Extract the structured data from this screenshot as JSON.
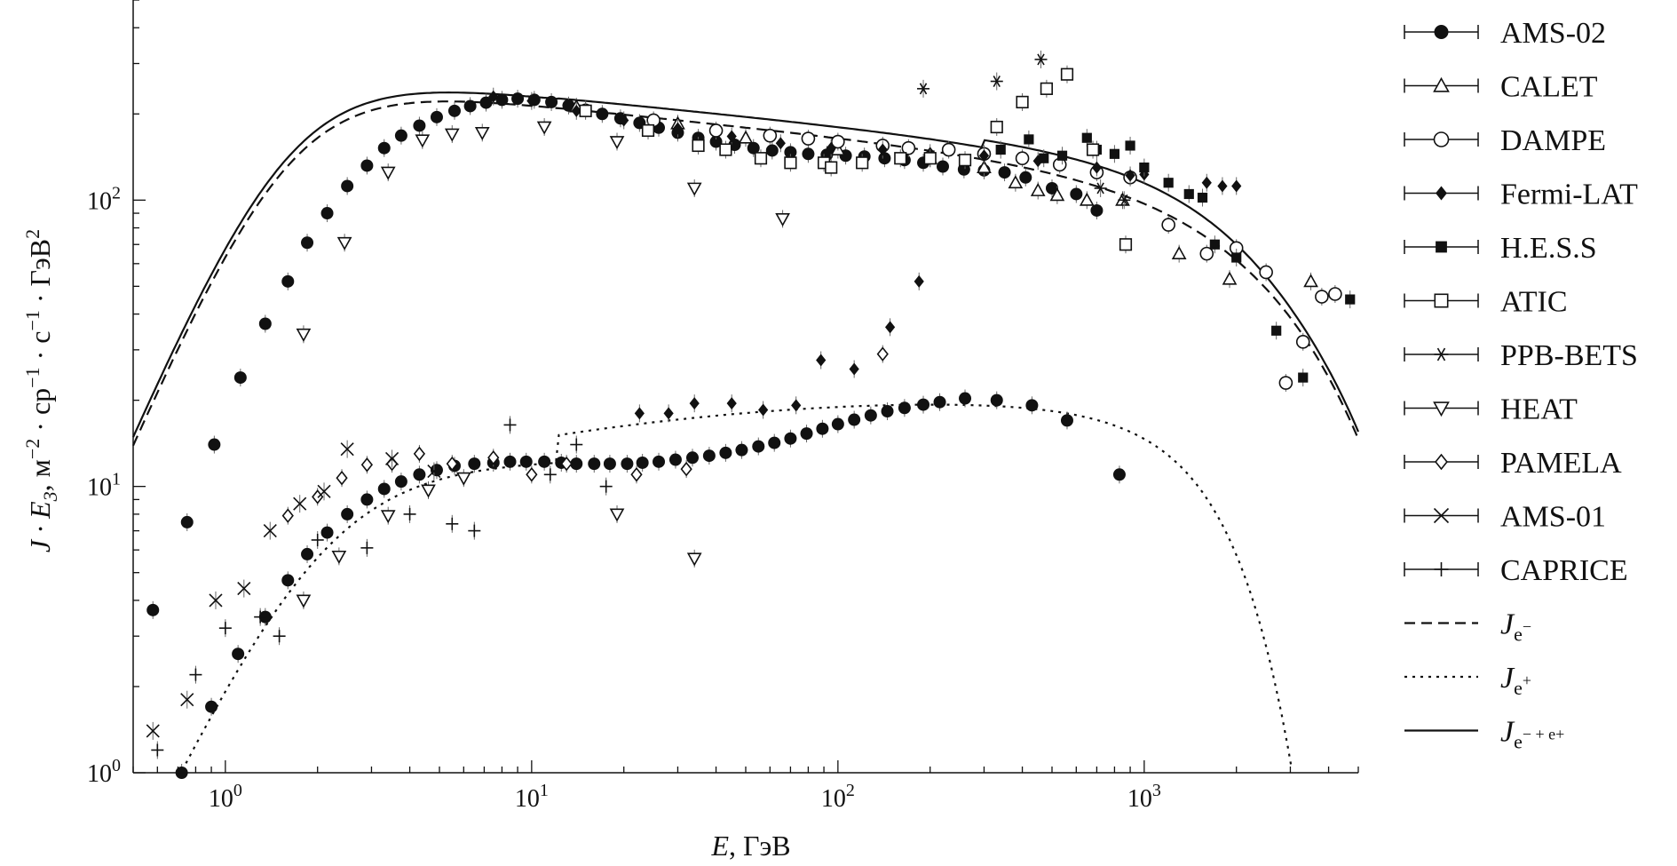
{
  "chart_data": {
    "type": "scatter",
    "title": "",
    "xlabel": {
      "main": "E",
      "unit": ", ГэВ"
    },
    "ylabel": {
      "prefix": "J · E",
      "sub": "3",
      "rest": ", м",
      "sup1": "−2",
      "mid1": " · ср",
      "sup2": "−1",
      "mid2": " · с",
      "sup3": "−1",
      "mid3": " · ГэВ",
      "sup4": "2"
    },
    "xscale": "log",
    "yscale": "log",
    "xlim": [
      0.5,
      5000
    ],
    "ylim": [
      1,
      500
    ],
    "x_ticks": [
      {
        "value": 1,
        "base": "10",
        "exp": "0"
      },
      {
        "value": 10,
        "base": "10",
        "exp": "1"
      },
      {
        "value": 100,
        "base": "10",
        "exp": "2"
      },
      {
        "value": 1000,
        "base": "10",
        "exp": "3"
      }
    ],
    "y_ticks": [
      {
        "value": 1,
        "base": "10",
        "exp": "0"
      },
      {
        "value": 10,
        "base": "10",
        "exp": "1"
      },
      {
        "value": 100,
        "base": "10",
        "exp": "2"
      }
    ],
    "legend_position": "right",
    "series": [
      {
        "name": "AMS-02",
        "marker": "filled-circle",
        "points": [
          [
            0.58,
            3.7
          ],
          [
            0.75,
            7.5
          ],
          [
            0.92,
            14
          ],
          [
            1.12,
            24
          ],
          [
            1.35,
            37
          ],
          [
            1.6,
            52
          ],
          [
            1.85,
            71
          ],
          [
            2.15,
            90
          ],
          [
            2.5,
            112
          ],
          [
            2.9,
            132
          ],
          [
            3.3,
            152
          ],
          [
            3.75,
            168
          ],
          [
            4.3,
            182
          ],
          [
            4.9,
            195
          ],
          [
            5.6,
            205
          ],
          [
            6.3,
            213
          ],
          [
            7.1,
            219
          ],
          [
            8.0,
            224
          ],
          [
            9.0,
            226
          ],
          [
            10.2,
            224
          ],
          [
            11.6,
            220
          ],
          [
            13.2,
            214
          ],
          [
            15.0,
            207
          ],
          [
            17.0,
            200
          ],
          [
            19.5,
            193
          ],
          [
            22.5,
            186
          ],
          [
            26,
            179
          ],
          [
            30,
            172
          ],
          [
            35,
            165
          ],
          [
            40,
            160
          ],
          [
            46,
            156
          ],
          [
            53,
            152
          ],
          [
            61,
            149
          ],
          [
            70,
            147
          ],
          [
            80,
            145
          ],
          [
            92,
            144
          ],
          [
            106,
            143
          ],
          [
            122,
            142
          ],
          [
            142,
            140
          ],
          [
            165,
            138
          ],
          [
            190,
            135
          ],
          [
            220,
            131
          ],
          [
            258,
            128
          ],
          [
            300,
            127
          ],
          [
            350,
            125
          ],
          [
            410,
            120
          ],
          [
            500,
            110
          ],
          [
            600,
            105
          ],
          [
            700,
            92
          ],
          [
            0.72,
            1.0
          ],
          [
            0.9,
            1.7
          ],
          [
            1.1,
            2.6
          ],
          [
            1.35,
            3.5
          ],
          [
            1.6,
            4.7
          ],
          [
            1.85,
            5.8
          ],
          [
            2.15,
            6.9
          ],
          [
            2.5,
            8.0
          ],
          [
            2.9,
            9.0
          ],
          [
            3.3,
            9.8
          ],
          [
            3.75,
            10.4
          ],
          [
            4.3,
            11.0
          ],
          [
            4.9,
            11.4
          ],
          [
            5.6,
            11.8
          ],
          [
            6.5,
            12.0
          ],
          [
            7.5,
            12.1
          ],
          [
            8.5,
            12.2
          ],
          [
            9.6,
            12.2
          ],
          [
            11,
            12.2
          ],
          [
            12.5,
            12.1
          ],
          [
            14,
            12.0
          ],
          [
            16,
            12.0
          ],
          [
            18,
            12.0
          ],
          [
            20.5,
            12.0
          ],
          [
            23,
            12.1
          ],
          [
            26,
            12.2
          ],
          [
            29.5,
            12.4
          ],
          [
            33.5,
            12.6
          ],
          [
            38,
            12.8
          ],
          [
            43,
            13.1
          ],
          [
            48.5,
            13.4
          ],
          [
            55,
            13.8
          ],
          [
            62,
            14.2
          ],
          [
            70,
            14.7
          ],
          [
            79,
            15.3
          ],
          [
            89,
            15.9
          ],
          [
            100,
            16.5
          ],
          [
            113,
            17.1
          ],
          [
            128,
            17.7
          ],
          [
            145,
            18.3
          ],
          [
            165,
            18.8
          ],
          [
            190,
            19.3
          ],
          [
            215,
            19.7
          ],
          [
            260,
            20.3
          ],
          [
            330,
            20.0
          ],
          [
            430,
            19.2
          ],
          [
            560,
            17.0
          ],
          [
            830,
            11.0
          ]
        ]
      },
      {
        "name": "CALET",
        "marker": "open-triangle",
        "points": [
          [
            14,
            212
          ],
          [
            30,
            185
          ],
          [
            50,
            165
          ],
          [
            100,
            150
          ],
          [
            200,
            140
          ],
          [
            300,
            130
          ],
          [
            380,
            115
          ],
          [
            450,
            108
          ],
          [
            520,
            104
          ],
          [
            650,
            100
          ],
          [
            850,
            100
          ],
          [
            1300,
            65
          ],
          [
            1900,
            53
          ],
          [
            3500,
            52
          ]
        ]
      },
      {
        "name": "DAMPE",
        "marker": "open-circle",
        "points": [
          [
            25,
            190
          ],
          [
            40,
            175
          ],
          [
            60,
            168
          ],
          [
            80,
            164
          ],
          [
            100,
            160
          ],
          [
            140,
            155
          ],
          [
            170,
            152
          ],
          [
            230,
            150
          ],
          [
            300,
            145
          ],
          [
            400,
            140
          ],
          [
            530,
            133
          ],
          [
            700,
            125
          ],
          [
            900,
            120
          ],
          [
            1200,
            82
          ],
          [
            1600,
            65
          ],
          [
            2000,
            68
          ],
          [
            2500,
            56
          ],
          [
            2900,
            23
          ],
          [
            3300,
            32
          ],
          [
            3800,
            46
          ],
          [
            4200,
            47
          ]
        ]
      },
      {
        "name": "Fermi-LAT",
        "marker": "filled-diamond",
        "points": [
          [
            7.5,
            230
          ],
          [
            10,
            222
          ],
          [
            14,
            205
          ],
          [
            20,
            190
          ],
          [
            30,
            178
          ],
          [
            45,
            167
          ],
          [
            65,
            158
          ],
          [
            95,
            152
          ],
          [
            140,
            150
          ],
          [
            200,
            146
          ],
          [
            300,
            143
          ],
          [
            450,
            137
          ],
          [
            700,
            130
          ],
          [
            900,
            122
          ],
          [
            1000,
            123
          ],
          [
            1600,
            115
          ],
          [
            1800,
            112
          ],
          [
            2000,
            112
          ],
          [
            22.5,
            18
          ],
          [
            28,
            18
          ],
          [
            34,
            19.5
          ],
          [
            45,
            19.5
          ],
          [
            57,
            18.5
          ],
          [
            73,
            19.2
          ],
          [
            88,
            27.6
          ],
          [
            113,
            25.7
          ],
          [
            148,
            36
          ],
          [
            184,
            52
          ]
        ]
      },
      {
        "name": "H.E.S.S",
        "marker": "filled-square",
        "points": [
          [
            340,
            150
          ],
          [
            420,
            163
          ],
          [
            470,
            140
          ],
          [
            540,
            143
          ],
          [
            650,
            165
          ],
          [
            700,
            150
          ],
          [
            800,
            145
          ],
          [
            900,
            155
          ],
          [
            1000,
            130
          ],
          [
            1200,
            115
          ],
          [
            1400,
            105
          ],
          [
            1550,
            102
          ],
          [
            1700,
            70
          ],
          [
            2000,
            63
          ],
          [
            2700,
            35
          ],
          [
            3300,
            24
          ],
          [
            4700,
            45
          ]
        ]
      },
      {
        "name": "ATIC",
        "marker": "open-square",
        "points": [
          [
            15,
            205
          ],
          [
            24,
            175
          ],
          [
            35,
            155
          ],
          [
            43,
            150
          ],
          [
            56,
            140
          ],
          [
            70,
            135
          ],
          [
            90,
            135
          ],
          [
            95,
            130
          ],
          [
            120,
            135
          ],
          [
            160,
            140
          ],
          [
            200,
            140
          ],
          [
            260,
            138
          ],
          [
            330,
            180
          ],
          [
            400,
            220
          ],
          [
            480,
            245
          ],
          [
            560,
            275
          ],
          [
            680,
            150
          ],
          [
            870,
            70
          ]
        ]
      },
      {
        "name": "PPB-BETS",
        "marker": "asterisk",
        "points": [
          [
            190,
            245
          ],
          [
            330,
            260
          ],
          [
            460,
            310
          ],
          [
            720,
            110
          ],
          [
            860,
            100
          ]
        ]
      },
      {
        "name": "HEAT",
        "marker": "open-triangle-down",
        "points": [
          [
            1.8,
            34
          ],
          [
            2.45,
            71
          ],
          [
            3.4,
            125
          ],
          [
            4.4,
            162
          ],
          [
            5.5,
            170
          ],
          [
            6.9,
            172
          ],
          [
            11,
            180
          ],
          [
            19,
            160
          ],
          [
            34,
            110
          ],
          [
            66,
            86
          ],
          [
            19,
            8.0
          ],
          [
            34,
            5.6
          ],
          [
            3.4,
            7.9
          ],
          [
            4.6,
            9.7
          ],
          [
            6.0,
            10.7
          ],
          [
            2.35,
            5.7
          ],
          [
            1.8,
            4.0
          ]
        ]
      },
      {
        "name": "PAMELA",
        "marker": "open-diamond",
        "points": [
          [
            1.6,
            7.9
          ],
          [
            2.0,
            9.2
          ],
          [
            2.4,
            10.7
          ],
          [
            2.9,
            11.9
          ],
          [
            3.5,
            12.0
          ],
          [
            4.3,
            13.0
          ],
          [
            5.5,
            12.0
          ],
          [
            7.5,
            12.6
          ],
          [
            10,
            11.0
          ],
          [
            13,
            12.0
          ],
          [
            22,
            11.0
          ],
          [
            32,
            11.5
          ],
          [
            140,
            29
          ]
        ]
      },
      {
        "name": "AMS-01",
        "marker": "cross",
        "points": [
          [
            0.58,
            1.4
          ],
          [
            0.75,
            1.8
          ],
          [
            0.93,
            4.0
          ],
          [
            1.15,
            4.4
          ],
          [
            1.4,
            7.0
          ],
          [
            1.75,
            8.7
          ],
          [
            2.1,
            9.6
          ],
          [
            2.5,
            13.5
          ],
          [
            3.5,
            12.5
          ],
          [
            4.8,
            11.3
          ]
        ]
      },
      {
        "name": "CAPRICE",
        "marker": "plus",
        "points": [
          [
            0.6,
            1.2
          ],
          [
            0.8,
            2.2
          ],
          [
            1.0,
            3.2
          ],
          [
            1.3,
            3.5
          ],
          [
            1.5,
            3.0
          ],
          [
            2.0,
            6.5
          ],
          [
            2.9,
            6.1
          ],
          [
            4.0,
            8.0
          ],
          [
            5.5,
            7.4
          ],
          [
            6.5,
            7.0
          ],
          [
            8.5,
            16.4
          ],
          [
            11.5,
            11.0
          ],
          [
            14,
            14.0
          ],
          [
            17.5,
            10.0
          ]
        ]
      }
    ],
    "curves": [
      {
        "name": "J_e−",
        "label": {
          "base": "J",
          "sub": "e",
          "sub_sup": "−"
        },
        "style": "dashed"
      },
      {
        "name": "J_e+",
        "label": {
          "base": "J",
          "sub": "e",
          "sub_sup": "+"
        },
        "style": "dotted"
      },
      {
        "name": "J_e−+e+",
        "label": {
          "base": "J",
          "sub": "e",
          "sub_sup": "− + e+"
        },
        "style": "solid"
      }
    ]
  }
}
